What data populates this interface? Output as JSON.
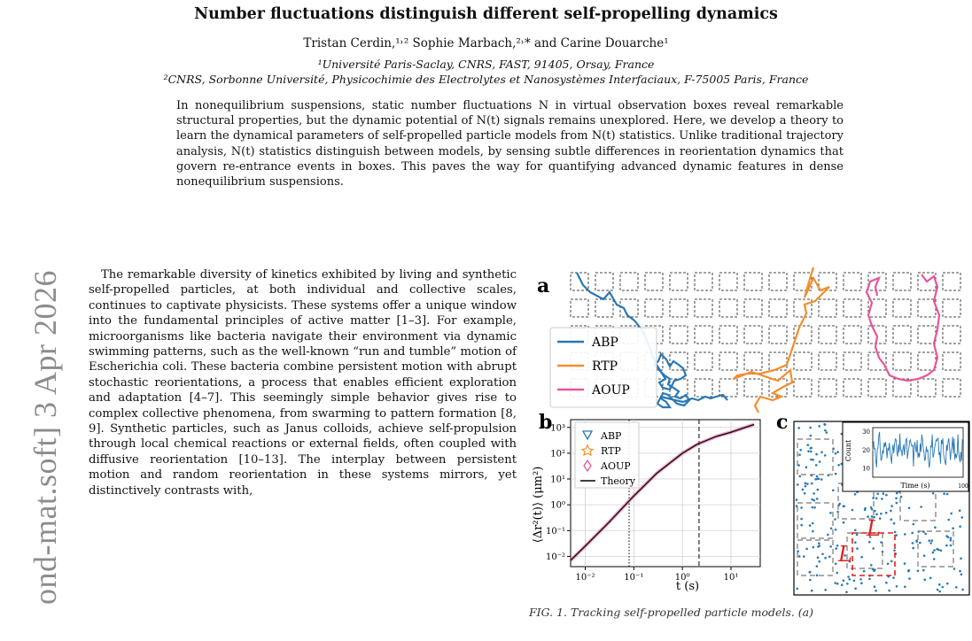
{
  "paper": {
    "title": "Number fluctuations distinguish different self-propelling dynamics",
    "authors": "Tristan Cerdin,¹˒² Sophie Marbach,²˒* and Carine Douarche¹",
    "affiliation_1": "¹Université Paris-Saclay, CNRS, FAST, 91405, Orsay, France",
    "affiliation_2": "²CNRS, Sorbonne Université, Physicochimie des Electrolytes et Nanosystèmes Interfaciaux, F-75005 Paris, France",
    "abstract": "In nonequilibrium suspensions, static number fluctuations N in virtual observation boxes reveal remarkable structural properties, but the dynamic potential of N(t) signals remains unexplored. Here, we develop a theory to learn the dynamical parameters of self-propelled particle models from N(t) statistics. Unlike traditional trajectory analysis, N(t) statistics distinguish between models, by sensing subtle differences in reorientation dynamics that govern re-entrance events in boxes. This paves the way for quantifying advanced dynamic features in dense nonequilibrium suspensions.",
    "arxiv_stamp": "ond-mat.soft]  3 Apr 2026",
    "body_paragraph": "The remarkable diversity of kinetics exhibited by living and synthetic self-propelled particles, at both individual and collective scales, continues to captivate physicists. These systems offer a unique window into the fundamental principles of active matter [1–3]. For example, microorganisms like bacteria navigate their environment via dynamic swimming patterns, such as the well-known “run and tumble” motion of Escherichia coli. These bacteria combine persistent motion with abrupt stochastic reorientations, a process that enables efficient exploration and adaptation [4–7]. This seemingly simple behavior gives rise to complex collective phenomena, from swarming to pattern formation [8, 9]. Synthetic particles, such as Janus colloids, achieve self-propulsion through local chemical reactions or external fields, often coupled with diffusive reorientation [10–13]. The interplay between persistent motion and random reorientation in these systems mirrors, yet distinctively contrasts with,",
    "figure_caption": "FIG. 1. Tracking self-propelled particle models. (a)"
  },
  "figure": {
    "panel_a": {
      "label": "a",
      "legend": [
        "ABP",
        "RTP",
        "AOUP"
      ],
      "colors": {
        "ABP": "#2878b5",
        "RTP": "#f28e2b",
        "AOUP": "#e8559a"
      }
    },
    "panel_b": {
      "label": "b",
      "legend": [
        "ABP",
        "RTP",
        "AOUP",
        "Theory"
      ],
      "ylabel": "⟨Δr²(t)⟩ (μm²)",
      "xlabel": "t (s)",
      "xticks": [
        "10⁻²",
        "10⁻¹",
        "10⁰",
        "10¹"
      ],
      "yticks": [
        "10³",
        "10²",
        "10¹",
        "10⁰",
        "10⁻¹",
        "10⁻²"
      ]
    },
    "panel_c": {
      "label": "c",
      "box_label": "L",
      "inset_ylabel": "Count",
      "inset_xlabel": "Time (s)",
      "inset_yticks": [
        "30",
        "20",
        "10"
      ],
      "inset_xtick_end": "100"
    }
  },
  "chart_data": {
    "type": "line",
    "title": "",
    "xlabel": "t (s)",
    "ylabel": "⟨Δr²(t)⟩ (μm²)",
    "x_scale": "log",
    "y_scale": "log",
    "xlim": [
      0.005,
      40
    ],
    "ylim": [
      0.004,
      2000
    ],
    "series": [
      {
        "name": "Theory",
        "x": [
          0.005,
          0.01,
          0.03,
          0.1,
          0.3,
          1,
          2,
          5,
          10,
          30
        ],
        "y": [
          0.007,
          0.025,
          0.2,
          2.2,
          17,
          100,
          220,
          450,
          650,
          1300
        ]
      }
    ],
    "vlines": [
      0.08,
      2.2
    ],
    "legend_position": "top-left",
    "grid": true
  }
}
